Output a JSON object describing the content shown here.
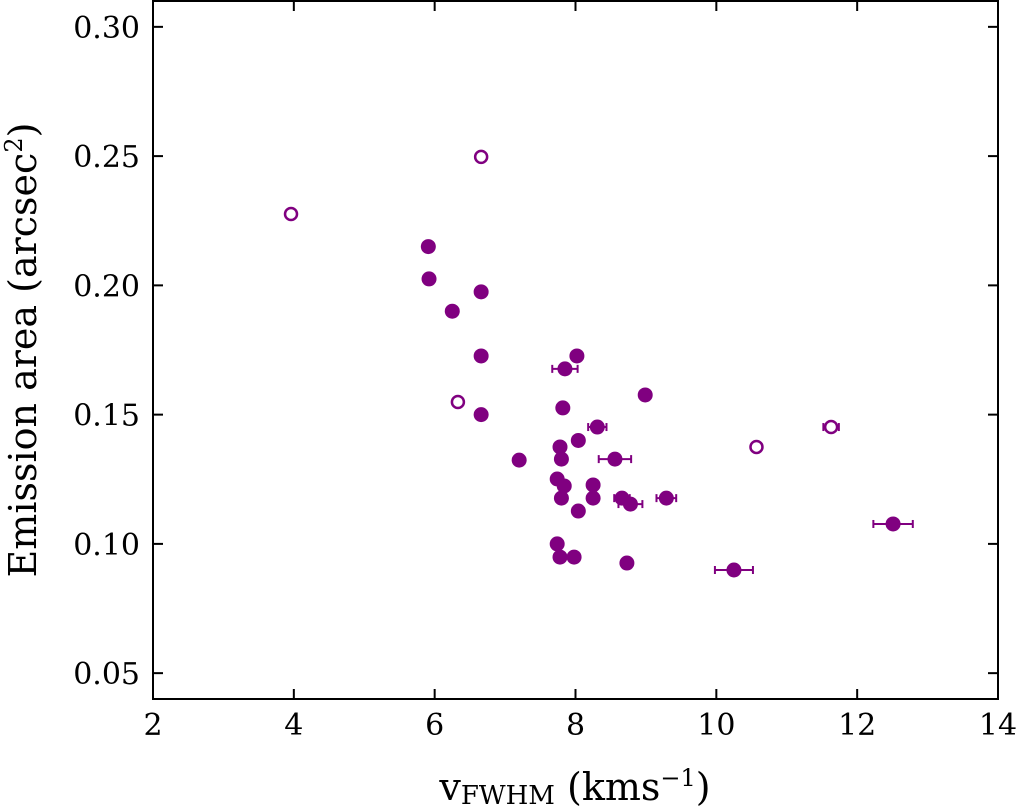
{
  "chart_data": {
    "type": "scatter",
    "x_label": [
      "v",
      "FWHM",
      " (kms",
      "−1",
      ")"
    ],
    "y_label": [
      "Emission area (arcsec",
      "2",
      ")"
    ],
    "xlim": [
      2,
      14
    ],
    "ylim": [
      0.04,
      0.31
    ],
    "xticks": [
      2,
      4,
      6,
      8,
      10,
      12,
      14
    ],
    "yticks": [
      {
        "value": 0.05,
        "label": "0.05"
      },
      {
        "value": 0.1,
        "label": "0.10"
      },
      {
        "value": 0.15,
        "label": "0.15"
      },
      {
        "value": 0.2,
        "label": "0.20"
      },
      {
        "value": 0.25,
        "label": "0.25"
      },
      {
        "value": 0.3,
        "label": "0.30"
      }
    ],
    "series": [
      {
        "color": "#800080",
        "marker": "filled",
        "x": [
          5.91,
          5.92,
          6.66,
          6.25,
          6.66,
          6.66,
          8.02,
          7.85,
          8.99,
          7.82,
          8.31,
          8.04,
          7.78,
          7.2,
          7.8,
          8.56,
          7.74,
          7.84,
          8.25,
          7.8,
          8.25,
          8.66,
          9.29,
          8.04,
          8.78,
          12.51,
          7.74,
          7.78,
          7.98,
          8.73,
          10.25
        ],
        "values": [
          0.215,
          0.2025,
          0.1975,
          0.19,
          0.1727,
          0.15,
          0.1727,
          0.1677,
          0.1576,
          0.1526,
          0.1452,
          0.14,
          0.1375,
          0.1324,
          0.1328,
          0.1328,
          0.1251,
          0.1224,
          0.1228,
          0.1177,
          0.1177,
          0.1177,
          0.1177,
          0.1127,
          0.1154,
          0.1077,
          0.1,
          0.0949,
          0.0949,
          0.0926,
          0.0899
        ],
        "xerr": [
          null,
          null,
          null,
          null,
          null,
          null,
          null,
          0.18,
          null,
          null,
          0.13,
          null,
          null,
          null,
          null,
          0.23,
          null,
          null,
          null,
          null,
          null,
          0.11,
          0.14,
          null,
          0.17,
          0.28,
          null,
          null,
          null,
          null,
          0.27
        ]
      },
      {
        "color": "#800080",
        "marker": "open",
        "x": [
          3.96,
          6.66,
          6.33,
          10.57,
          11.63
        ],
        "values": [
          0.2276,
          0.2497,
          0.1549,
          0.1375,
          0.1452
        ],
        "xerr": [
          null,
          null,
          null,
          null,
          0.11
        ]
      }
    ]
  }
}
